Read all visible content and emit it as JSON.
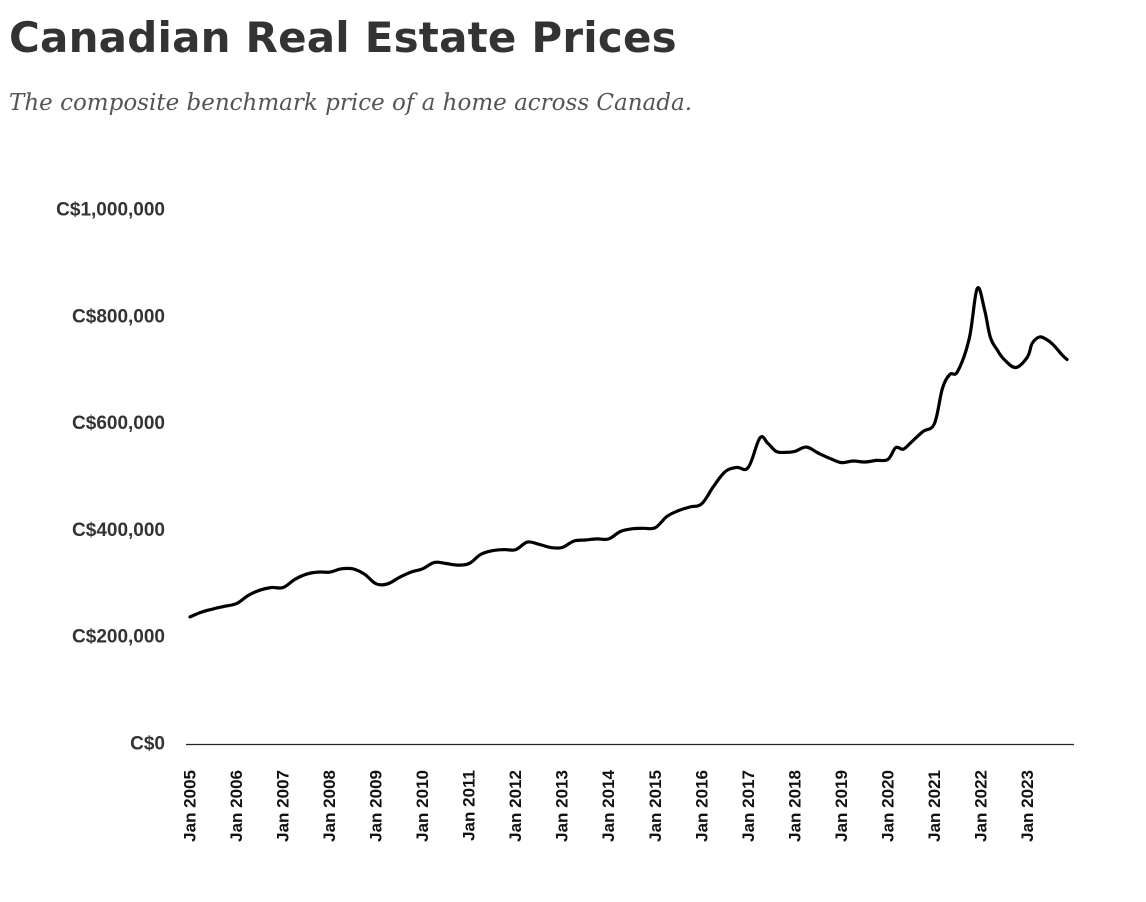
{
  "chart_data": {
    "type": "line",
    "title": "Canadian Real Estate Prices",
    "subtitle": "The composite benchmark price of a home across Canada.",
    "xlabel": "",
    "ylabel": "",
    "ylim": [
      0,
      1000000
    ],
    "yticks": [
      {
        "value": 0,
        "label": "C$0"
      },
      {
        "value": 200000,
        "label": "C$200,000"
      },
      {
        "value": 400000,
        "label": "C$400,000"
      },
      {
        "value": 600000,
        "label": "C$600,000"
      },
      {
        "value": 800000,
        "label": "C$800,000"
      },
      {
        "value": 1000000,
        "label": "C$1,000,000"
      }
    ],
    "xlim": [
      2005.0,
      2024.0
    ],
    "xticks": [
      {
        "value": 2005,
        "label": "Jan 2005"
      },
      {
        "value": 2006,
        "label": "Jan 2006"
      },
      {
        "value": 2007,
        "label": "Jan 2007"
      },
      {
        "value": 2008,
        "label": "Jan 2008"
      },
      {
        "value": 2009,
        "label": "Jan 2009"
      },
      {
        "value": 2010,
        "label": "Jan 2010"
      },
      {
        "value": 2011,
        "label": "Jan 2011"
      },
      {
        "value": 2012,
        "label": "Jan 2012"
      },
      {
        "value": 2013,
        "label": "Jan 2013"
      },
      {
        "value": 2014,
        "label": "Jan 2014"
      },
      {
        "value": 2015,
        "label": "Jan 2015"
      },
      {
        "value": 2016,
        "label": "Jan 2016"
      },
      {
        "value": 2017,
        "label": "Jan 2017"
      },
      {
        "value": 2018,
        "label": "Jan 2018"
      },
      {
        "value": 2019,
        "label": "Jan 2019"
      },
      {
        "value": 2020,
        "label": "Jan 2020"
      },
      {
        "value": 2021,
        "label": "Jan 2021"
      },
      {
        "value": 2022,
        "label": "Jan 2022"
      },
      {
        "value": 2023,
        "label": "Jan 2023"
      }
    ],
    "grid": false,
    "legend": "none",
    "series": [
      {
        "name": "Composite benchmark price",
        "color": "#000000",
        "x": [
          2005.0,
          2005.25,
          2005.5,
          2005.75,
          2006.0,
          2006.25,
          2006.5,
          2006.75,
          2007.0,
          2007.25,
          2007.5,
          2007.75,
          2008.0,
          2008.25,
          2008.5,
          2008.75,
          2009.0,
          2009.25,
          2009.5,
          2009.75,
          2010.0,
          2010.25,
          2010.5,
          2010.75,
          2011.0,
          2011.25,
          2011.5,
          2011.75,
          2012.0,
          2012.25,
          2012.5,
          2012.75,
          2013.0,
          2013.25,
          2013.5,
          2013.75,
          2014.0,
          2014.25,
          2014.5,
          2014.75,
          2015.0,
          2015.25,
          2015.5,
          2015.75,
          2016.0,
          2016.25,
          2016.5,
          2016.75,
          2017.0,
          2017.25,
          2017.42,
          2017.6,
          2017.8,
          2018.0,
          2018.25,
          2018.5,
          2018.75,
          2019.0,
          2019.25,
          2019.5,
          2019.75,
          2020.0,
          2020.17,
          2020.33,
          2020.5,
          2020.75,
          2021.0,
          2021.17,
          2021.33,
          2021.5,
          2021.75,
          2021.92,
          2022.08,
          2022.2,
          2022.35,
          2022.5,
          2022.75,
          2023.0,
          2023.1,
          2023.25,
          2023.4,
          2023.55,
          2023.75,
          2023.85
        ],
        "y": [
          238000,
          247000,
          253000,
          258000,
          263000,
          278000,
          288000,
          293000,
          293000,
          308000,
          318000,
          322000,
          322000,
          328000,
          328000,
          318000,
          300000,
          300000,
          312000,
          322000,
          328000,
          340000,
          338000,
          335000,
          338000,
          355000,
          362000,
          364000,
          364000,
          378000,
          374000,
          368000,
          368000,
          380000,
          382000,
          384000,
          384000,
          398000,
          403000,
          404000,
          405000,
          426000,
          437000,
          444000,
          450000,
          482000,
          510000,
          518000,
          518000,
          573000,
          563000,
          548000,
          546000,
          548000,
          556000,
          545000,
          535000,
          527000,
          530000,
          528000,
          531000,
          533000,
          555000,
          552000,
          565000,
          585000,
          600000,
          665000,
          692000,
          698000,
          760000,
          853000,
          812000,
          762000,
          738000,
          720000,
          705000,
          725000,
          750000,
          762000,
          758000,
          748000,
          728000,
          720000
        ]
      }
    ]
  }
}
